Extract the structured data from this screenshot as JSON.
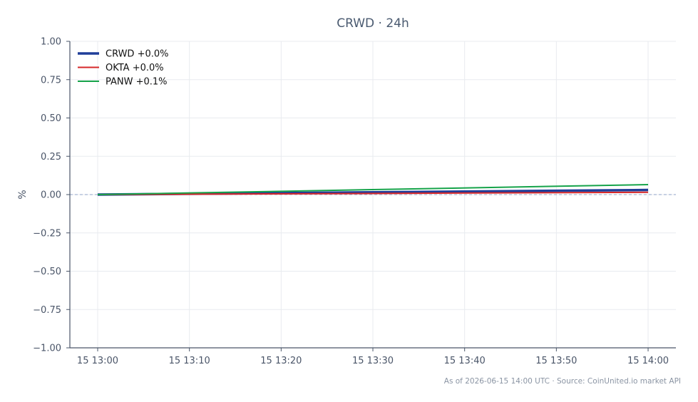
{
  "chart_data": {
    "type": "line",
    "title": "CRWD · 24h",
    "xlabel": "",
    "ylabel": "%",
    "x": [
      "15 13:00",
      "15 13:10",
      "15 13:20",
      "15 13:30",
      "15 13:40",
      "15 13:50",
      "15 14:00"
    ],
    "x_tick_labels": [
      "15 13:00",
      "15 13:10",
      "15 13:20",
      "15 13:30",
      "15 13:40",
      "15 13:50",
      "15 14:00"
    ],
    "ylim": [
      -1.0,
      1.0
    ],
    "y_tick_labels": [
      "1.00",
      "0.75",
      "0.50",
      "0.25",
      "0.00",
      "−0.25",
      "−0.50",
      "−0.75",
      "−1.00"
    ],
    "y_ticks": [
      1.0,
      0.75,
      0.5,
      0.25,
      0.0,
      -0.25,
      -0.5,
      -0.75,
      -1.0
    ],
    "grid": true,
    "reference_line": 0.0,
    "legend_position": "top-left",
    "series": [
      {
        "name": "CRWD +0.0%",
        "color": "#1f3d99",
        "x": [
          "15 13:00",
          "15 14:00"
        ],
        "values": [
          0.0,
          0.03
        ]
      },
      {
        "name": "OKTA +0.0%",
        "color": "#d62728",
        "x": [
          "15 13:00",
          "15 14:00"
        ],
        "values": [
          0.0,
          0.015
        ]
      },
      {
        "name": "PANW +0.1%",
        "color": "#16a34a",
        "x": [
          "15 13:00",
          "15 14:00"
        ],
        "values": [
          0.0,
          0.065
        ]
      }
    ]
  },
  "footer": "As of 2026-06-15 14:00 UTC · Source: CoinUnited.io market API"
}
